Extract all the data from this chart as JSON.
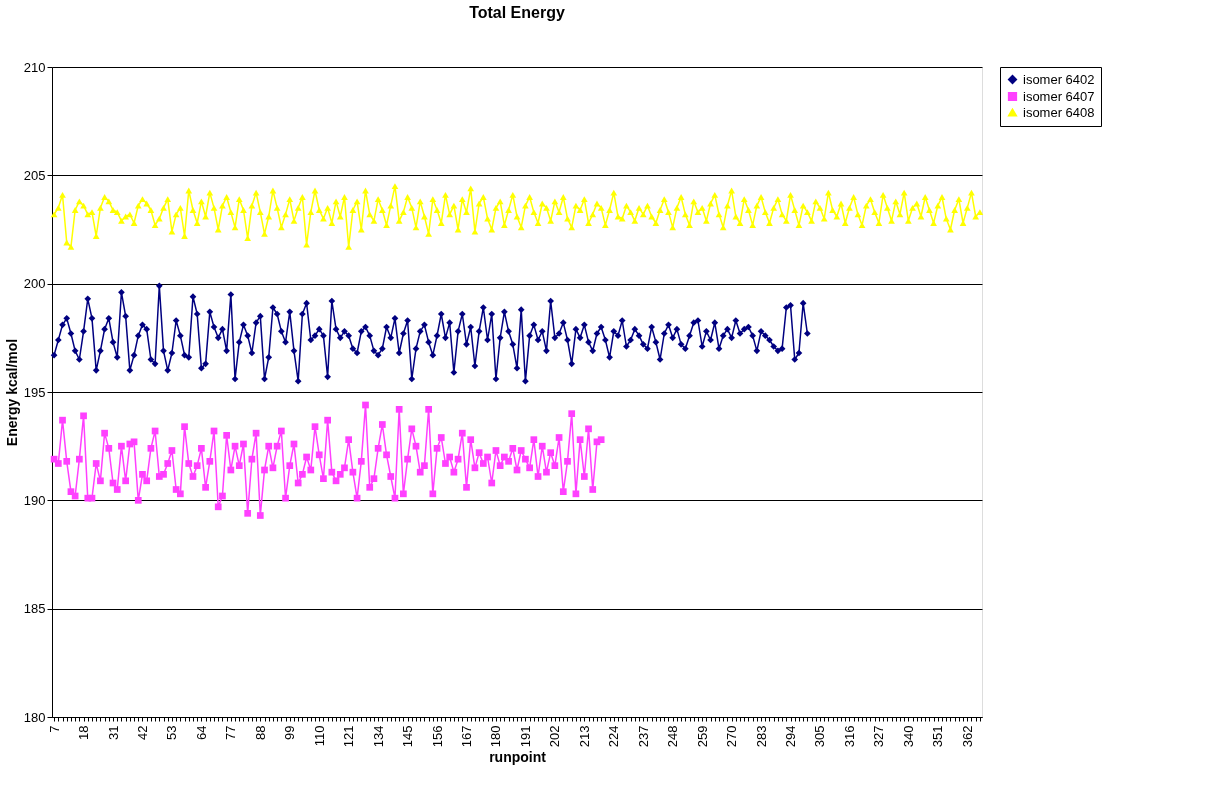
{
  "chart_data": {
    "type": "line",
    "title": "Total Energy",
    "xlabel": "runpoint",
    "ylabel": "Energy kcal/mol",
    "ylim": [
      180,
      210
    ],
    "yticks": [
      180,
      185,
      190,
      195,
      200,
      205,
      210
    ],
    "grid": "y",
    "legend": "right",
    "categories": [
      "7",
      null,
      null,
      null,
      null,
      null,
      null,
      "18",
      null,
      null,
      null,
      null,
      null,
      null,
      "31",
      null,
      null,
      null,
      null,
      null,
      null,
      "42",
      null,
      null,
      null,
      null,
      null,
      null,
      "53",
      null,
      null,
      null,
      null,
      null,
      null,
      "64",
      null,
      null,
      null,
      null,
      null,
      null,
      "77",
      null,
      null,
      null,
      null,
      null,
      null,
      "88",
      null,
      null,
      null,
      null,
      null,
      null,
      "99",
      null,
      null,
      null,
      null,
      null,
      null,
      "110",
      null,
      null,
      null,
      null,
      null,
      null,
      "121",
      null,
      null,
      null,
      null,
      null,
      null,
      "134",
      null,
      null,
      null,
      null,
      null,
      null,
      "145",
      null,
      null,
      null,
      null,
      null,
      null,
      "156",
      null,
      null,
      null,
      null,
      null,
      null,
      "167",
      null,
      null,
      null,
      null,
      null,
      null,
      "180",
      null,
      null,
      null,
      null,
      null,
      null,
      "191",
      null,
      null,
      null,
      null,
      null,
      null,
      "202",
      null,
      null,
      null,
      null,
      null,
      null,
      "213",
      null,
      null,
      null,
      null,
      null,
      null,
      "224",
      null,
      null,
      null,
      null,
      null,
      null,
      "237",
      null,
      null,
      null,
      null,
      null,
      null,
      "248",
      null,
      null,
      null,
      null,
      null,
      null,
      "259",
      null,
      null,
      null,
      null,
      null,
      null,
      "270",
      null,
      null,
      null,
      null,
      null,
      null,
      "283",
      null,
      null,
      null,
      null,
      null,
      null,
      "294",
      null,
      null,
      null,
      null,
      null,
      null,
      "305",
      null,
      null,
      null,
      null,
      null,
      null,
      "316",
      null,
      null,
      null,
      null,
      null,
      null,
      "327",
      null,
      null,
      null,
      null,
      null,
      null,
      "340",
      null,
      null,
      null,
      null,
      null,
      null,
      "351",
      null,
      null,
      null,
      null,
      null,
      null,
      "362",
      null,
      null,
      null
    ],
    "series": [
      {
        "name": "isomer 6402",
        "color": "#000080",
        "marker": "diamond",
        "values": [
          196.7,
          197.4,
          198.1,
          198.4,
          197.7,
          196.9,
          196.5,
          197.8,
          199.3,
          198.4,
          196.0,
          196.9,
          197.9,
          198.4,
          197.3,
          196.6,
          199.6,
          198.5,
          196.0,
          196.7,
          197.6,
          198.1,
          197.9,
          196.5,
          196.3,
          199.9,
          196.9,
          196.0,
          196.8,
          198.3,
          197.6,
          196.7,
          196.6,
          199.4,
          198.6,
          196.1,
          196.3,
          198.7,
          198.0,
          197.5,
          197.9,
          196.9,
          199.5,
          195.6,
          197.3,
          198.1,
          197.6,
          196.8,
          198.2,
          198.5,
          195.6,
          196.6,
          198.9,
          198.6,
          197.8,
          197.3,
          198.7,
          196.9,
          195.5,
          198.6,
          199.1,
          197.4,
          197.6,
          197.9,
          197.6,
          195.7,
          199.2,
          197.9,
          197.5,
          197.8,
          197.6,
          197.0,
          196.8,
          197.8,
          198.0,
          197.6,
          196.9,
          196.7,
          197.0,
          198.0,
          197.5,
          198.4,
          196.8,
          197.7,
          198.3,
          195.6,
          197.0,
          197.8,
          198.1,
          197.3,
          196.7,
          197.6,
          198.6,
          197.5,
          198.2,
          195.9,
          197.8,
          198.6,
          197.2,
          198.0,
          196.2,
          197.8,
          198.9,
          197.4,
          198.6,
          195.6,
          197.5,
          198.7,
          197.8,
          197.2,
          196.1,
          198.8,
          195.5,
          197.6,
          198.1,
          197.4,
          197.8,
          196.9,
          199.2,
          197.5,
          197.7,
          198.2,
          197.4,
          196.3,
          197.9,
          197.5,
          198.1,
          197.3,
          196.9,
          197.7,
          198.0,
          197.4,
          196.6,
          197.8,
          197.6,
          198.3,
          197.1,
          197.4,
          197.9,
          197.6,
          197.2,
          197.0,
          198.0,
          197.3,
          196.5,
          197.7,
          198.1,
          197.5,
          197.9,
          197.2,
          197.0,
          197.6,
          198.2,
          198.3,
          197.1,
          197.8,
          197.4,
          198.2,
          197.0,
          197.6,
          197.9,
          197.5,
          198.3,
          197.7,
          197.9,
          198.0,
          197.6,
          196.9,
          197.8,
          197.6,
          197.4,
          197.1,
          196.9,
          197.0,
          198.9,
          199.0,
          196.5,
          196.8,
          199.1,
          197.7,
          null,
          null,
          null,
          null,
          null,
          null,
          null,
          null,
          null,
          null,
          null,
          null,
          null,
          null,
          null,
          null,
          null,
          null,
          null,
          null,
          null,
          null,
          null,
          null,
          null,
          null,
          null,
          null,
          null,
          null,
          null,
          null,
          null,
          null,
          null,
          null,
          null,
          null,
          null,
          null,
          null
        ]
      },
      {
        "name": "isomer 6407",
        "color": "#ff40ff",
        "marker": "square",
        "values": [
          191.9,
          191.7,
          193.7,
          191.8,
          190.4,
          190.2,
          191.9,
          193.9,
          190.1,
          190.1,
          191.7,
          190.9,
          193.1,
          192.4,
          190.8,
          190.5,
          192.5,
          190.9,
          192.6,
          192.7,
          190.0,
          191.2,
          190.9,
          192.4,
          193.2,
          191.1,
          191.2,
          191.7,
          192.3,
          190.5,
          190.3,
          193.4,
          191.7,
          191.1,
          191.6,
          192.4,
          190.6,
          191.8,
          193.2,
          189.7,
          190.2,
          193.0,
          191.4,
          192.5,
          191.6,
          192.6,
          189.4,
          191.9,
          193.1,
          189.3,
          191.4,
          192.5,
          191.5,
          192.5,
          193.2,
          190.1,
          191.6,
          192.6,
          190.8,
          191.2,
          192.0,
          191.4,
          193.4,
          192.1,
          191.0,
          193.7,
          191.3,
          190.9,
          191.2,
          191.5,
          192.8,
          191.3,
          190.1,
          191.8,
          194.4,
          190.6,
          191.0,
          192.4,
          193.5,
          192.1,
          191.1,
          190.1,
          194.2,
          190.3,
          191.9,
          193.3,
          192.5,
          191.3,
          191.6,
          194.2,
          190.3,
          192.4,
          192.9,
          191.7,
          192.0,
          191.3,
          191.9,
          193.1,
          190.6,
          192.8,
          191.5,
          192.2,
          191.7,
          192.0,
          190.8,
          192.3,
          191.6,
          192.0,
          191.8,
          192.4,
          191.4,
          192.3,
          191.9,
          191.5,
          192.8,
          191.1,
          192.5,
          191.3,
          192.2,
          191.6,
          192.9,
          190.4,
          191.8,
          194.0,
          190.3,
          192.8,
          191.1,
          193.3,
          190.5,
          192.7,
          192.8,
          null,
          null,
          null,
          null,
          null,
          null,
          null,
          null,
          null,
          null,
          null,
          null,
          null,
          null,
          null,
          null,
          null,
          null,
          null,
          null,
          null,
          null,
          null,
          null,
          null,
          null,
          null,
          null,
          null,
          null,
          null,
          null,
          null,
          null,
          null,
          null,
          null,
          null,
          null,
          null,
          null,
          null,
          null,
          null,
          null,
          null,
          null,
          null,
          null,
          null,
          null,
          null,
          null,
          null,
          null,
          null,
          null,
          null,
          null,
          null,
          null,
          null,
          null,
          null,
          null,
          null,
          null,
          null,
          null,
          null,
          null,
          null,
          null,
          null,
          null,
          null,
          null,
          null,
          null,
          null,
          null,
          null,
          null,
          null,
          null,
          null,
          null,
          null,
          null,
          null
        ]
      },
      {
        "name": "isomer 6408",
        "color": "#ffff00",
        "marker": "triangle",
        "values": [
          203.2,
          203.5,
          204.1,
          201.9,
          201.7,
          203.4,
          203.8,
          203.6,
          203.2,
          203.3,
          202.2,
          203.5,
          204.0,
          203.8,
          203.4,
          203.3,
          202.9,
          203.1,
          203.2,
          202.8,
          203.6,
          203.9,
          203.7,
          203.4,
          202.7,
          203.0,
          203.5,
          203.9,
          202.4,
          203.2,
          203.5,
          202.2,
          204.3,
          203.4,
          202.8,
          203.8,
          203.1,
          204.2,
          203.5,
          202.5,
          203.6,
          204.0,
          203.3,
          202.6,
          203.9,
          203.4,
          202.1,
          203.6,
          204.2,
          203.3,
          202.3,
          203.1,
          204.3,
          203.5,
          202.6,
          203.2,
          203.9,
          202.9,
          203.5,
          204.0,
          201.8,
          203.3,
          204.3,
          203.4,
          203.0,
          203.5,
          202.8,
          203.8,
          203.1,
          204.0,
          201.7,
          203.4,
          203.8,
          202.5,
          204.3,
          203.2,
          202.9,
          203.9,
          203.4,
          202.7,
          203.6,
          204.5,
          202.9,
          203.3,
          204.0,
          203.5,
          202.6,
          203.8,
          203.1,
          202.3,
          203.9,
          203.4,
          202.8,
          204.1,
          203.2,
          203.6,
          202.5,
          203.9,
          203.3,
          204.4,
          202.4,
          203.7,
          204.0,
          203.0,
          202.5,
          203.5,
          203.8,
          202.7,
          203.4,
          204.1,
          203.1,
          202.6,
          203.6,
          204.0,
          203.3,
          202.8,
          203.7,
          203.5,
          202.9,
          203.8,
          203.3,
          204.0,
          203.0,
          202.6,
          203.6,
          203.4,
          203.9,
          202.8,
          203.2,
          203.7,
          203.5,
          202.7,
          203.4,
          204.2,
          203.1,
          203.0,
          203.6,
          203.3,
          202.9,
          203.5,
          203.2,
          203.6,
          203.1,
          202.8,
          203.4,
          203.9,
          203.3,
          202.6,
          203.5,
          204.0,
          203.2,
          202.7,
          203.8,
          203.3,
          203.5,
          202.9,
          203.7,
          204.1,
          203.2,
          202.6,
          203.6,
          204.3,
          203.1,
          202.8,
          203.9,
          203.4,
          202.7,
          203.6,
          204.0,
          203.3,
          202.8,
          203.5,
          203.9,
          203.2,
          202.9,
          204.1,
          203.4,
          202.7,
          203.6,
          203.3,
          202.9,
          203.8,
          203.5,
          203.0,
          204.2,
          203.4,
          203.1,
          203.7,
          202.8,
          203.5,
          204.0,
          203.2,
          202.7,
          203.6,
          203.9,
          203.3,
          202.8,
          204.1,
          203.5,
          202.9,
          203.8,
          203.2,
          204.2,
          202.9,
          203.5,
          203.7,
          203.1,
          204.0,
          203.4,
          202.8,
          203.6,
          204.0,
          203.0,
          202.5,
          203.4,
          203.9,
          202.8,
          203.5,
          204.2,
          203.1,
          203.3
        ]
      }
    ]
  }
}
